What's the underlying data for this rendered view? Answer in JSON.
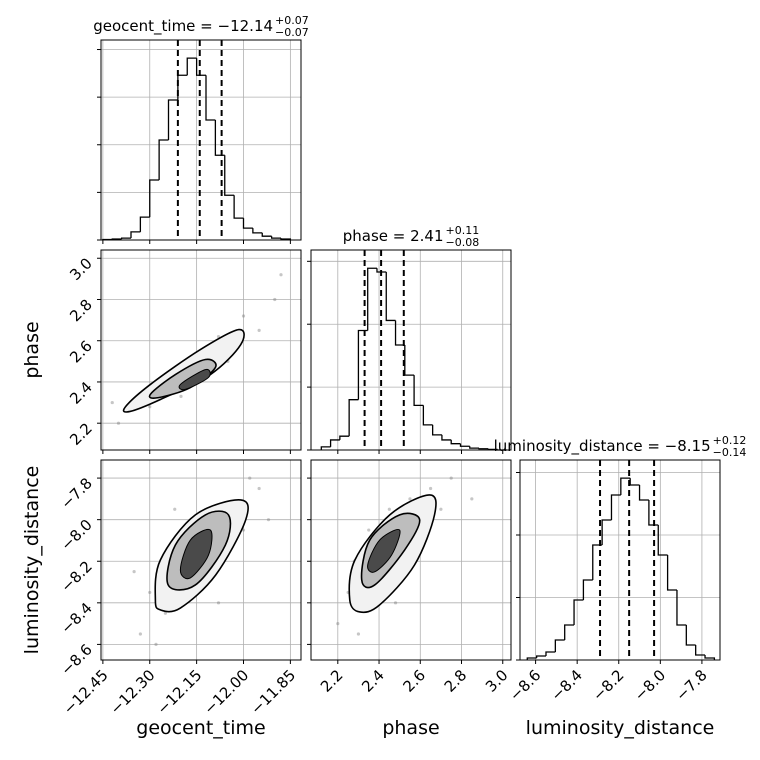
{
  "chart_data": {
    "type": "corner",
    "grid": true,
    "line_color": "#000000",
    "point_color": "#808080",
    "contour_colors": [
      "#f2f2f2",
      "#bdbdbd",
      "#4a4a4a"
    ],
    "params": [
      {
        "name": "geocent_time",
        "title": "geocent_time = −12.14",
        "title_sup": "+0.07",
        "title_sub": "−0.07",
        "lim": [
          -12.456,
          -11.816
        ],
        "ticks": [
          {
            "value": -12.45,
            "label": "−12.45"
          },
          {
            "value": -12.3,
            "label": "−12.30"
          },
          {
            "value": -12.15,
            "label": "−12.15"
          },
          {
            "value": -12.0,
            "label": "−12.00"
          },
          {
            "value": -11.85,
            "label": "−11.85"
          }
        ],
        "quantiles": [
          -12.21,
          -12.14,
          -12.07
        ],
        "bins": [
          -12.45,
          -12.42,
          -12.39,
          -12.36,
          -12.33,
          -12.3,
          -12.27,
          -12.24,
          -12.21,
          -12.18,
          -12.15,
          -12.12,
          -12.09,
          -12.06,
          -12.03,
          -12.0,
          -11.97,
          -11.94,
          -11.91,
          -11.88,
          -11.85
        ],
        "counts": [
          5,
          10,
          20,
          85,
          240,
          630,
          1050,
          1470,
          1730,
          1910,
          1730,
          1260,
          890,
          470,
          230,
          125,
          75,
          40,
          20,
          10
        ],
        "count_lim": [
          0,
          2100
        ],
        "count_ticks": [
          0,
          500,
          1000,
          1500,
          2000
        ]
      },
      {
        "name": "phase",
        "title": "phase = 2.41",
        "title_sup": "+0.11",
        "title_sub": "−0.08",
        "lim": [
          2.07,
          3.04
        ],
        "ticks": [
          2.2,
          2.4,
          2.6,
          2.8,
          {
            "value": 3.0,
            "label": "3.0"
          }
        ],
        "quantiles": [
          2.33,
          2.41,
          2.52
        ],
        "bins": [
          2.12,
          2.165,
          2.21,
          2.255,
          2.3,
          2.345,
          2.39,
          2.435,
          2.48,
          2.525,
          2.57,
          2.615,
          2.66,
          2.705,
          2.75,
          2.795,
          2.84,
          2.885,
          2.93,
          2.975,
          3.02
        ],
        "counts": [
          25,
          80,
          110,
          400,
          950,
          1445,
          1415,
          1030,
          835,
          595,
          355,
          200,
          120,
          80,
          50,
          30,
          15,
          10,
          5,
          0
        ],
        "count_lim": [
          0,
          1590
        ],
        "count_ticks": [
          0,
          500,
          1000,
          1500
        ]
      },
      {
        "name": "luminosity_distance",
        "title": "luminosity_distance = −8.15",
        "title_sup": "+0.12",
        "title_sub": "−0.14",
        "lim": [
          -8.675,
          -7.713
        ],
        "ticks": [
          {
            "value": -8.6,
            "label": "−8.6"
          },
          {
            "value": -8.4,
            "label": "−8.4"
          },
          {
            "value": -8.2,
            "label": "−8.2"
          },
          {
            "value": -8.0,
            "label": "−8.0"
          },
          {
            "value": -7.8,
            "label": "−7.8"
          }
        ],
        "quantiles": [
          -8.29,
          -8.15,
          -8.03
        ],
        "bins": [
          -8.64,
          -8.595,
          -8.55,
          -8.505,
          -8.46,
          -8.415,
          -8.37,
          -8.325,
          -8.28,
          -8.235,
          -8.19,
          -8.145,
          -8.1,
          -8.055,
          -8.01,
          -7.965,
          -7.92,
          -7.875,
          -7.83,
          -7.785,
          -7.74
        ],
        "counts": [
          16,
          32,
          64,
          160,
          280,
          480,
          640,
          920,
          1120,
          1320,
          1455,
          1400,
          1280,
          1080,
          840,
          560,
          280,
          120,
          40,
          16
        ],
        "count_lim": [
          0,
          1600
        ],
        "count_ticks": [
          0,
          500,
          1000,
          1500
        ]
      }
    ],
    "pairs": [
      {
        "x": [
          -12.4,
          -12.35,
          -12.3,
          -12.25,
          -12.2,
          -12.1,
          -12.05,
          -12.0,
          -11.95,
          -11.9,
          -12.18,
          -12.28,
          -12.08,
          -12.42,
          -11.88
        ],
        "y": [
          2.2,
          2.3,
          2.28,
          2.42,
          2.33,
          2.55,
          2.5,
          2.72,
          2.65,
          2.8,
          2.48,
          2.38,
          2.62,
          2.3,
          2.92
        ],
        "contours": [
          {
            "x": [
              -12.379,
              -12.298,
              -12.138,
              -12.015,
              -12.009,
              -12.106,
              -12.266,
              -12.363
            ],
            "y": [
              2.277,
              2.388,
              2.557,
              2.654,
              2.581,
              2.436,
              2.315,
              2.257
            ]
          },
          {
            "x": [
              -12.298,
              -12.218,
              -12.122,
              -12.09,
              -12.17,
              -12.272
            ],
            "y": [
              2.34,
              2.436,
              2.509,
              2.47,
              2.373,
              2.324
            ]
          },
          {
            "x": [
              -12.202,
              -12.122,
              -12.112,
              -12.186
            ],
            "y": [
              2.388,
              2.46,
              2.422,
              2.364
            ]
          }
        ]
      },
      {
        "x": [
          -12.33,
          -12.3,
          -12.25,
          -12.2,
          -12.15,
          -12.1,
          -12.05,
          -12.0,
          -11.95,
          -11.92,
          -12.35,
          -12.22,
          -12.08,
          -11.98,
          -12.28
        ],
        "y": [
          -8.55,
          -8.35,
          -8.45,
          -8.3,
          -8.05,
          -8.2,
          -7.95,
          -8.05,
          -7.85,
          -8.0,
          -8.25,
          -7.95,
          -8.4,
          -7.8,
          -8.6
        ],
        "contours": [
          {
            "x": [
              -12.282,
              -12.266,
              -12.154,
              -12.009,
              -11.993,
              -12.089,
              -12.202,
              -12.266
            ],
            "y": [
              -8.386,
              -8.194,
              -7.977,
              -7.905,
              -8.001,
              -8.266,
              -8.425,
              -8.434
            ]
          },
          {
            "x": [
              -12.241,
              -12.218,
              -12.122,
              -12.048,
              -12.058,
              -12.154
            ],
            "y": [
              -8.314,
              -8.122,
              -7.977,
              -7.977,
              -8.122,
              -8.314
            ]
          },
          {
            "x": [
              -12.202,
              -12.17,
              -12.106,
              -12.112,
              -12.17
            ],
            "y": [
              -8.242,
              -8.098,
              -8.05,
              -8.17,
              -8.28
            ]
          }
        ]
      },
      {
        "x": [
          2.2,
          2.25,
          2.3,
          2.35,
          2.4,
          2.45,
          2.5,
          2.55,
          2.6,
          2.65,
          2.7,
          2.75,
          2.28,
          2.48,
          2.85
        ],
        "y": [
          -8.5,
          -8.35,
          -8.55,
          -8.05,
          -8.3,
          -7.95,
          -8.2,
          -7.9,
          -8.05,
          -7.85,
          -7.95,
          -7.8,
          -8.2,
          -8.4,
          -7.9
        ],
        "contours": [
          {
            "x": [
              2.258,
              2.283,
              2.452,
              2.645,
              2.669,
              2.572,
              2.403,
              2.307
            ],
            "y": [
              -8.386,
              -8.194,
              -7.977,
              -7.881,
              -7.977,
              -8.218,
              -8.41,
              -8.444
            ]
          },
          {
            "x": [
              2.316,
              2.355,
              2.5,
              2.597,
              2.524,
              2.379
            ],
            "y": [
              -8.29,
              -8.098,
              -7.977,
              -8.001,
              -8.146,
              -8.314
            ]
          },
          {
            "x": [
              2.345,
              2.403,
              2.5,
              2.461,
              2.379
            ],
            "y": [
              -8.218,
              -8.098,
              -8.05,
              -8.17,
              -8.251
            ]
          }
        ]
      }
    ]
  }
}
